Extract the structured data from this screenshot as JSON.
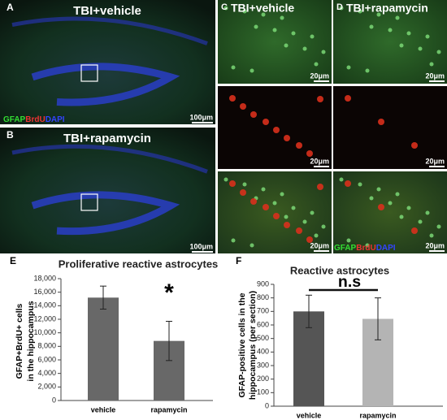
{
  "images": {
    "A": {
      "label": "A",
      "title": "TBI+vehicle",
      "scale_bar": "100μm",
      "stains": [
        "GFAP",
        "BrdU",
        "DAPI"
      ]
    },
    "B": {
      "label": "B",
      "title": "TBI+rapamycin",
      "scale_bar": "100μm"
    },
    "C": {
      "label": "C",
      "title": "TBI+vehicle",
      "scale_bars": [
        "20μm",
        "20μm",
        "20μm"
      ]
    },
    "D": {
      "label": "D",
      "title": "TBI+rapamycin",
      "scale_bars": [
        "20μm",
        "20μm",
        "20μm"
      ],
      "stains": [
        "GFAP",
        "BrdU",
        "DAPI"
      ]
    },
    "stain_colors": [
      "#33dd33",
      "#ee3333",
      "#3344ff"
    ]
  },
  "chart_data": [
    {
      "type": "bar",
      "label": "E",
      "title": "Proliferative reactive astrocytes",
      "y_label": [
        "GFAP+BrdU+ cells",
        "in the hippocampus"
      ],
      "categories": [
        "vehicle",
        "rapamycin"
      ],
      "values": [
        15200,
        8800
      ],
      "errors": [
        1700,
        2900
      ],
      "colors": [
        "#686868",
        "#686868"
      ],
      "ylim": [
        0,
        18000
      ],
      "yticks": [
        0,
        {
          "value": 2000,
          "label": "2,000"
        },
        {
          "value": 4000,
          "label": "4,000"
        },
        {
          "value": 6000,
          "label": "6,000"
        },
        {
          "value": 8000,
          "label": "8,000"
        },
        {
          "value": 10000,
          "label": "10,000"
        },
        {
          "value": 12000,
          "label": "12,000"
        },
        {
          "value": 14000,
          "label": "14,000"
        },
        {
          "value": 16000,
          "label": "16,000"
        },
        {
          "value": 18000,
          "label": "18,000"
        }
      ],
      "annotation": "*"
    },
    {
      "type": "bar",
      "label": "F",
      "title": "Reactive astrocytes",
      "y_label": [
        "GFAP-positive cells in the",
        "hippocampus (per section)"
      ],
      "categories": [
        "vehicle",
        "rapamycin"
      ],
      "values": [
        700,
        645
      ],
      "errors": [
        120,
        155
      ],
      "colors": [
        "#555555",
        "#b4b4b4"
      ],
      "ylim": [
        0,
        900
      ],
      "yticks": [
        0,
        100,
        200,
        300,
        400,
        500,
        600,
        700,
        800,
        900
      ],
      "annotation": "n.s"
    }
  ]
}
